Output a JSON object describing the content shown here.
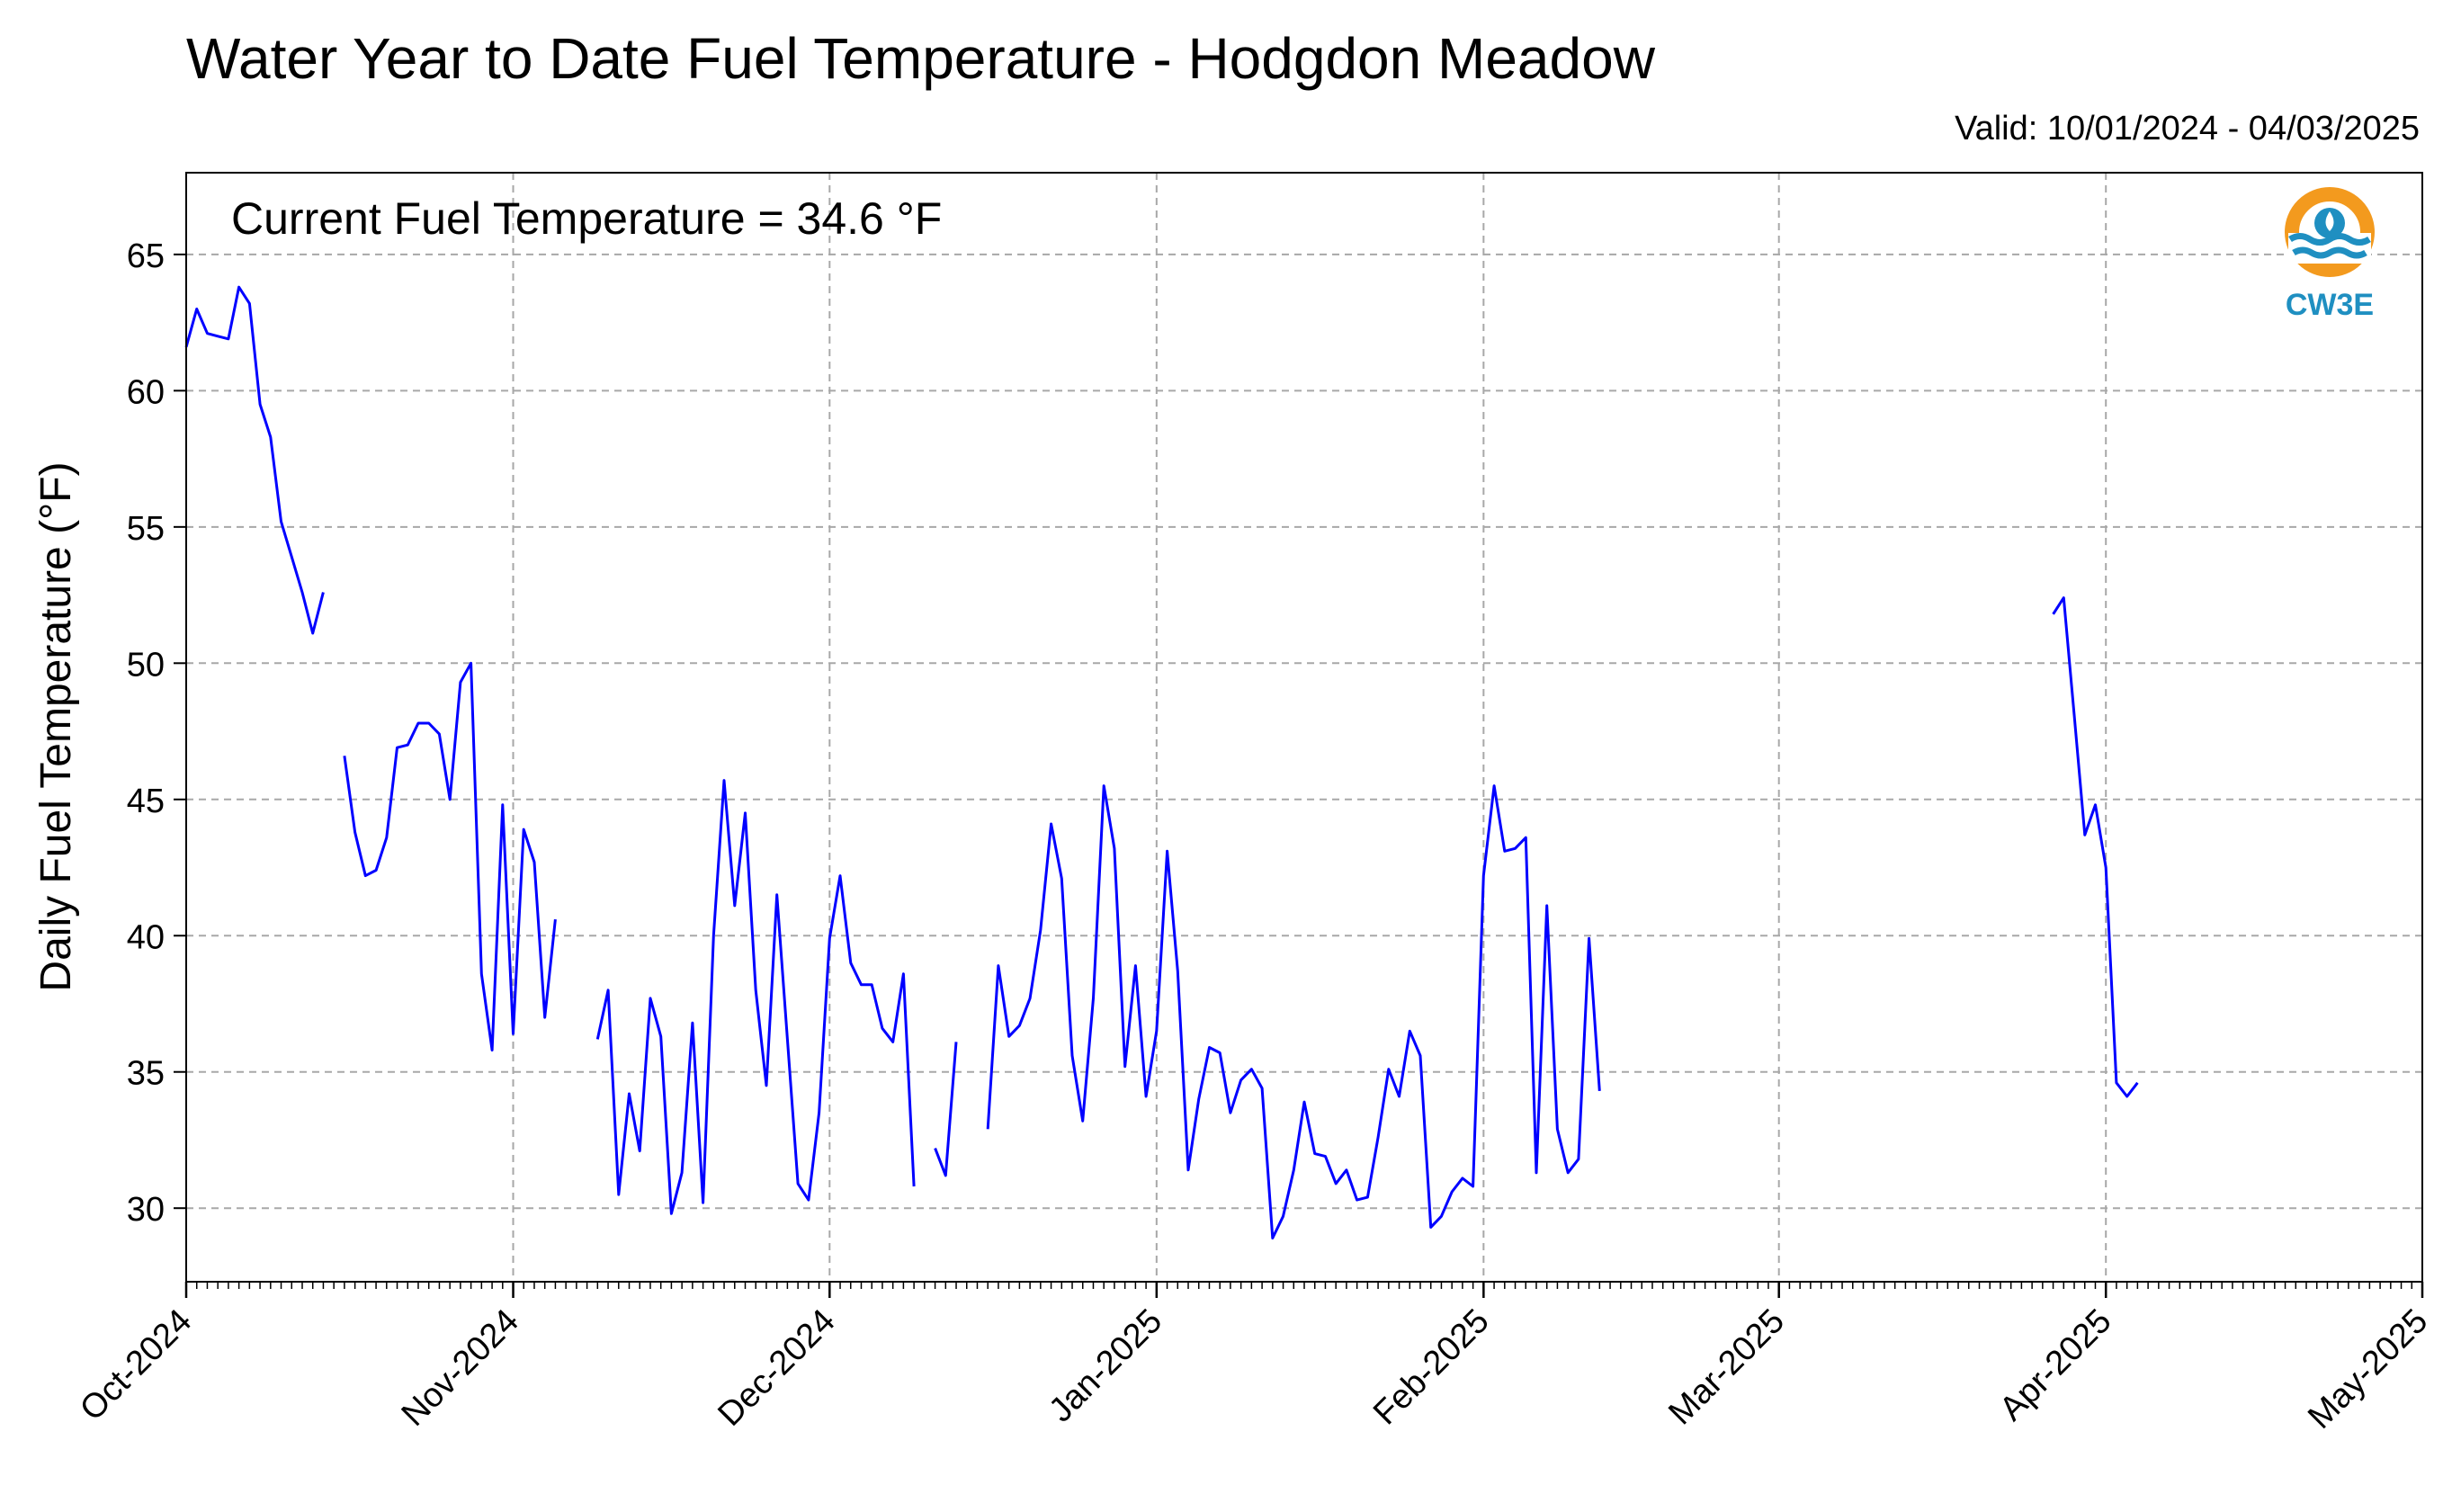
{
  "title": "Water Year to Date Fuel Temperature - Hodgdon Meadow",
  "valid": "Valid: 10/01/2024 - 04/03/2025",
  "logo": {
    "text": "CW3E",
    "icon": "water-drop-logo-icon",
    "ring_color": "#f39a1e",
    "wave_color": "#1f8fc1"
  },
  "chart_data": {
    "type": "line",
    "annotation": "Current Fuel Temperature = 34.6 °F",
    "ylabel": "Daily Fuel Temperature (°F)",
    "xlabel": "",
    "xlim": [
      "2024-10-01",
      "2025-05-01"
    ],
    "ylim": [
      27.3,
      68.0
    ],
    "yticks": [
      30,
      35,
      40,
      45,
      50,
      55,
      60,
      65
    ],
    "xtick_labels": [
      {
        "date": "2024-10-01",
        "label": "Oct-2024"
      },
      {
        "date": "2024-11-01",
        "label": "Nov-2024"
      },
      {
        "date": "2024-12-01",
        "label": "Dec-2024"
      },
      {
        "date": "2025-01-01",
        "label": "Jan-2025"
      },
      {
        "date": "2025-02-01",
        "label": "Feb-2025"
      },
      {
        "date": "2025-03-01",
        "label": "Mar-2025"
      },
      {
        "date": "2025-04-01",
        "label": "Apr-2025"
      },
      {
        "date": "2025-05-01",
        "label": "May-2025"
      }
    ],
    "grid": true,
    "line_color": "#0000ff",
    "series": [
      {
        "segments": [
          {
            "start": "2024-10-01",
            "values": [
              61.6,
              63.0,
              62.1,
              62.0,
              61.9,
              63.8,
              63.2,
              59.5,
              58.3,
              55.2,
              53.9,
              52.6,
              51.1,
              52.6
            ]
          },
          {
            "start": "2024-10-16",
            "values": [
              46.6,
              43.8,
              42.2,
              42.4,
              43.6,
              46.9,
              47.0,
              47.8,
              47.8,
              47.4,
              45.0,
              49.3,
              50.0,
              38.6,
              35.8,
              44.8,
              36.4,
              43.9,
              42.7,
              37.0,
              40.6
            ]
          },
          {
            "start": "2024-11-09",
            "values": [
              36.2,
              38.0,
              30.5,
              34.2,
              32.1,
              37.7,
              36.3,
              29.8,
              31.3,
              36.8,
              30.2,
              40.0,
              45.7,
              41.1,
              44.5,
              38.0,
              34.5,
              41.5,
              36.2,
              30.9,
              30.3,
              33.5,
              39.9,
              42.2,
              39.0,
              38.2,
              38.2,
              36.6,
              36.1,
              38.6,
              30.8
            ]
          },
          {
            "start": "2024-12-11",
            "values": [
              32.2,
              31.2,
              36.1
            ]
          },
          {
            "start": "2024-12-16",
            "values": [
              32.9,
              38.9,
              36.3,
              36.7,
              37.7,
              40.2,
              44.1,
              42.1,
              35.6,
              33.2,
              37.7,
              45.5,
              43.2,
              35.2,
              38.9,
              34.1,
              36.5,
              43.1,
              38.7,
              31.4,
              34.0,
              35.9,
              35.7,
              33.5,
              34.7,
              35.1,
              34.4,
              28.9,
              29.7,
              31.4,
              33.9,
              32.0,
              31.9,
              30.9,
              31.4,
              30.3,
              30.4,
              32.6,
              35.1,
              34.1,
              36.5,
              35.6,
              29.3,
              29.7,
              30.6,
              31.1,
              30.8,
              42.2,
              45.5,
              43.1,
              43.2,
              43.6,
              31.3,
              41.1,
              32.9,
              31.3,
              31.8,
              39.9,
              34.3
            ]
          }
        ]
      },
      {
        "segments": [
          {
            "start": "2025-03-27",
            "values": [
              51.8,
              52.4,
              48.1,
              43.7,
              44.8,
              42.5,
              34.6,
              34.1,
              34.6
            ]
          }
        ]
      }
    ]
  }
}
